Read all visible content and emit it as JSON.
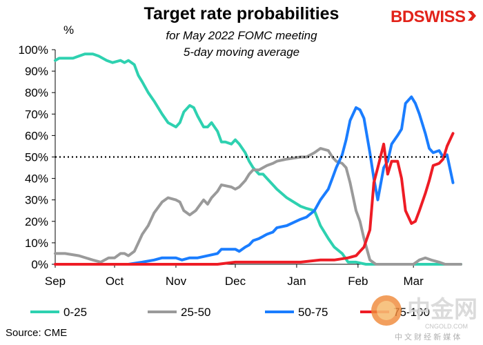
{
  "header": {
    "title": "Target rate probabilities",
    "subtitle_line1": "for May 2022 FOMC meeting",
    "subtitle_line2": "5-day moving average",
    "unit": "%"
  },
  "brand": {
    "logo_text": "BDSWISS",
    "logo_color": "#e2231a"
  },
  "footer": {
    "source": "Source: CME"
  },
  "watermark": {
    "text": "中金网",
    "subtext": "CNGOLD.COM",
    "subtext2": "中 文 财 经 新 媒 体"
  },
  "chart_data": {
    "type": "line",
    "title": "Target rate probabilities",
    "subtitle": "for May 2022 FOMC meeting, 5-day moving average",
    "ylabel": "%",
    "ylim": [
      0,
      100
    ],
    "yticks": [
      0,
      10,
      20,
      30,
      40,
      50,
      60,
      70,
      80,
      90,
      100
    ],
    "ytick_labels": [
      "0%",
      "10%",
      "20%",
      "30%",
      "40%",
      "50%",
      "60%",
      "70%",
      "80%",
      "90%",
      "100%"
    ],
    "x_domain": [
      "2021-09-01",
      "2022-03-25"
    ],
    "xticks": [
      "Sep",
      "Oct",
      "Nov",
      "Dec",
      "Jan",
      "Feb",
      "Mar"
    ],
    "xtick_dates": [
      "2021-09-01",
      "2021-10-01",
      "2021-11-01",
      "2021-12-01",
      "2022-01-01",
      "2022-02-01",
      "2022-03-01"
    ],
    "reference_line": {
      "y": 50,
      "style": "dotted"
    },
    "legend_position": "bottom",
    "series": [
      {
        "name": "0-25",
        "color": "#2ed1b0",
        "points": [
          [
            "2021-09-01",
            95
          ],
          [
            "2021-09-03",
            96
          ],
          [
            "2021-09-06",
            96
          ],
          [
            "2021-09-10",
            96
          ],
          [
            "2021-09-13",
            97
          ],
          [
            "2021-09-16",
            98
          ],
          [
            "2021-09-20",
            98
          ],
          [
            "2021-09-23",
            97
          ],
          [
            "2021-09-27",
            95
          ],
          [
            "2021-09-30",
            94
          ],
          [
            "2021-10-04",
            95
          ],
          [
            "2021-10-06",
            94
          ],
          [
            "2021-10-08",
            95
          ],
          [
            "2021-10-11",
            93
          ],
          [
            "2021-10-13",
            88
          ],
          [
            "2021-10-15",
            85
          ],
          [
            "2021-10-18",
            80
          ],
          [
            "2021-10-21",
            76
          ],
          [
            "2021-10-25",
            70
          ],
          [
            "2021-10-28",
            66
          ],
          [
            "2021-11-01",
            64
          ],
          [
            "2021-11-03",
            66
          ],
          [
            "2021-11-05",
            71
          ],
          [
            "2021-11-08",
            74
          ],
          [
            "2021-11-10",
            73
          ],
          [
            "2021-11-12",
            69
          ],
          [
            "2021-11-15",
            64
          ],
          [
            "2021-11-17",
            64
          ],
          [
            "2021-11-19",
            66
          ],
          [
            "2021-11-22",
            62
          ],
          [
            "2021-11-24",
            57
          ],
          [
            "2021-11-26",
            57
          ],
          [
            "2021-11-29",
            56
          ],
          [
            "2021-12-01",
            58
          ],
          [
            "2021-12-03",
            56
          ],
          [
            "2021-12-06",
            52
          ],
          [
            "2021-12-08",
            48
          ],
          [
            "2021-12-10",
            45
          ],
          [
            "2021-12-13",
            42
          ],
          [
            "2021-12-15",
            42
          ],
          [
            "2021-12-17",
            40
          ],
          [
            "2021-12-20",
            37
          ],
          [
            "2021-12-22",
            35
          ],
          [
            "2021-12-27",
            31
          ],
          [
            "2022-01-03",
            27
          ],
          [
            "2022-01-06",
            26
          ],
          [
            "2022-01-10",
            25
          ],
          [
            "2022-01-13",
            18
          ],
          [
            "2022-01-17",
            12
          ],
          [
            "2022-01-20",
            8
          ],
          [
            "2022-01-24",
            5
          ],
          [
            "2022-01-27",
            1
          ],
          [
            "2022-01-31",
            1
          ],
          [
            "2022-02-05",
            0
          ],
          [
            "2022-03-25",
            0
          ]
        ]
      },
      {
        "name": "25-50",
        "color": "#9a9a9a",
        "points": [
          [
            "2021-09-01",
            5
          ],
          [
            "2021-09-06",
            5
          ],
          [
            "2021-09-13",
            4
          ],
          [
            "2021-09-20",
            2
          ],
          [
            "2021-09-24",
            1
          ],
          [
            "2021-09-28",
            3
          ],
          [
            "2021-10-01",
            3
          ],
          [
            "2021-10-04",
            5
          ],
          [
            "2021-10-06",
            5
          ],
          [
            "2021-10-08",
            4
          ],
          [
            "2021-10-11",
            6
          ],
          [
            "2021-10-13",
            10
          ],
          [
            "2021-10-15",
            14
          ],
          [
            "2021-10-18",
            18
          ],
          [
            "2021-10-21",
            24
          ],
          [
            "2021-10-25",
            29
          ],
          [
            "2021-10-28",
            31
          ],
          [
            "2021-11-01",
            30
          ],
          [
            "2021-11-03",
            29
          ],
          [
            "2021-11-05",
            25
          ],
          [
            "2021-11-08",
            23
          ],
          [
            "2021-11-11",
            25
          ],
          [
            "2021-11-15",
            30
          ],
          [
            "2021-11-17",
            28
          ],
          [
            "2021-11-19",
            31
          ],
          [
            "2021-11-22",
            34
          ],
          [
            "2021-11-24",
            37
          ],
          [
            "2021-11-29",
            36
          ],
          [
            "2021-12-01",
            35
          ],
          [
            "2021-12-03",
            36
          ],
          [
            "2021-12-06",
            39
          ],
          [
            "2021-12-08",
            42
          ],
          [
            "2021-12-10",
            44
          ],
          [
            "2021-12-13",
            44
          ],
          [
            "2021-12-15",
            45
          ],
          [
            "2021-12-17",
            46
          ],
          [
            "2021-12-20",
            47
          ],
          [
            "2021-12-22",
            48
          ],
          [
            "2021-12-27",
            49
          ],
          [
            "2022-01-03",
            50
          ],
          [
            "2022-01-06",
            50
          ],
          [
            "2022-01-10",
            52
          ],
          [
            "2022-01-13",
            54
          ],
          [
            "2022-01-17",
            53
          ],
          [
            "2022-01-19",
            50
          ],
          [
            "2022-01-21",
            48
          ],
          [
            "2022-01-24",
            47
          ],
          [
            "2022-01-26",
            45
          ],
          [
            "2022-01-28",
            38
          ],
          [
            "2022-01-31",
            25
          ],
          [
            "2022-02-02",
            20
          ],
          [
            "2022-02-04",
            12
          ],
          [
            "2022-02-07",
            2
          ],
          [
            "2022-02-10",
            0
          ],
          [
            "2022-03-01",
            0
          ],
          [
            "2022-03-04",
            2
          ],
          [
            "2022-03-07",
            3
          ],
          [
            "2022-03-10",
            2
          ],
          [
            "2022-03-14",
            1
          ],
          [
            "2022-03-17",
            0
          ],
          [
            "2022-03-25",
            0
          ]
        ]
      },
      {
        "name": "50-75",
        "color": "#1a7dff",
        "points": [
          [
            "2021-09-01",
            0
          ],
          [
            "2021-10-08",
            0
          ],
          [
            "2021-10-15",
            1
          ],
          [
            "2021-10-21",
            2
          ],
          [
            "2021-10-25",
            3
          ],
          [
            "2021-10-28",
            3
          ],
          [
            "2021-11-01",
            3
          ],
          [
            "2021-11-04",
            2
          ],
          [
            "2021-11-08",
            3
          ],
          [
            "2021-11-12",
            3
          ],
          [
            "2021-11-17",
            4
          ],
          [
            "2021-11-22",
            5
          ],
          [
            "2021-11-24",
            7
          ],
          [
            "2021-12-01",
            7
          ],
          [
            "2021-12-03",
            6
          ],
          [
            "2021-12-06",
            8
          ],
          [
            "2021-12-08",
            9
          ],
          [
            "2021-12-10",
            11
          ],
          [
            "2021-12-13",
            12
          ],
          [
            "2021-12-15",
            13
          ],
          [
            "2021-12-17",
            14
          ],
          [
            "2021-12-20",
            15
          ],
          [
            "2021-12-22",
            17
          ],
          [
            "2021-12-27",
            18
          ],
          [
            "2022-01-03",
            21
          ],
          [
            "2022-01-06",
            22
          ],
          [
            "2022-01-10",
            25
          ],
          [
            "2022-01-13",
            30
          ],
          [
            "2022-01-17",
            35
          ],
          [
            "2022-01-19",
            40
          ],
          [
            "2022-01-21",
            45
          ],
          [
            "2022-01-24",
            51
          ],
          [
            "2022-01-26",
            58
          ],
          [
            "2022-01-28",
            67
          ],
          [
            "2022-01-31",
            73
          ],
          [
            "2022-02-02",
            72
          ],
          [
            "2022-02-04",
            68
          ],
          [
            "2022-02-07",
            52
          ],
          [
            "2022-02-09",
            40
          ],
          [
            "2022-02-11",
            30
          ],
          [
            "2022-02-14",
            45
          ],
          [
            "2022-02-16",
            48
          ],
          [
            "2022-02-18",
            56
          ],
          [
            "2022-02-21",
            60
          ],
          [
            "2022-02-23",
            63
          ],
          [
            "2022-02-25",
            75
          ],
          [
            "2022-02-28",
            78
          ],
          [
            "2022-03-02",
            75
          ],
          [
            "2022-03-04",
            70
          ],
          [
            "2022-03-07",
            61
          ],
          [
            "2022-03-09",
            54
          ],
          [
            "2022-03-11",
            52
          ],
          [
            "2022-03-14",
            53
          ],
          [
            "2022-03-16",
            50
          ],
          [
            "2022-03-18",
            51
          ],
          [
            "2022-03-21",
            38
          ]
        ]
      },
      {
        "name": "75-100",
        "color": "#ee1c25",
        "points": [
          [
            "2021-09-01",
            0
          ],
          [
            "2021-11-22",
            0
          ],
          [
            "2021-12-01",
            1
          ],
          [
            "2021-12-15",
            1
          ],
          [
            "2022-01-03",
            1
          ],
          [
            "2022-01-13",
            2
          ],
          [
            "2022-01-20",
            2
          ],
          [
            "2022-01-27",
            3
          ],
          [
            "2022-01-31",
            4
          ],
          [
            "2022-02-02",
            6
          ],
          [
            "2022-02-04",
            8
          ],
          [
            "2022-02-07",
            16
          ],
          [
            "2022-02-09",
            38
          ],
          [
            "2022-02-11",
            45
          ],
          [
            "2022-02-14",
            56
          ],
          [
            "2022-02-16",
            42
          ],
          [
            "2022-02-18",
            48
          ],
          [
            "2022-02-21",
            48
          ],
          [
            "2022-02-23",
            40
          ],
          [
            "2022-02-25",
            25
          ],
          [
            "2022-02-28",
            19
          ],
          [
            "2022-03-02",
            20
          ],
          [
            "2022-03-04",
            25
          ],
          [
            "2022-03-07",
            33
          ],
          [
            "2022-03-09",
            39
          ],
          [
            "2022-03-11",
            46
          ],
          [
            "2022-03-14",
            47
          ],
          [
            "2022-03-16",
            49
          ],
          [
            "2022-03-18",
            55
          ],
          [
            "2022-03-21",
            61
          ]
        ]
      }
    ]
  }
}
